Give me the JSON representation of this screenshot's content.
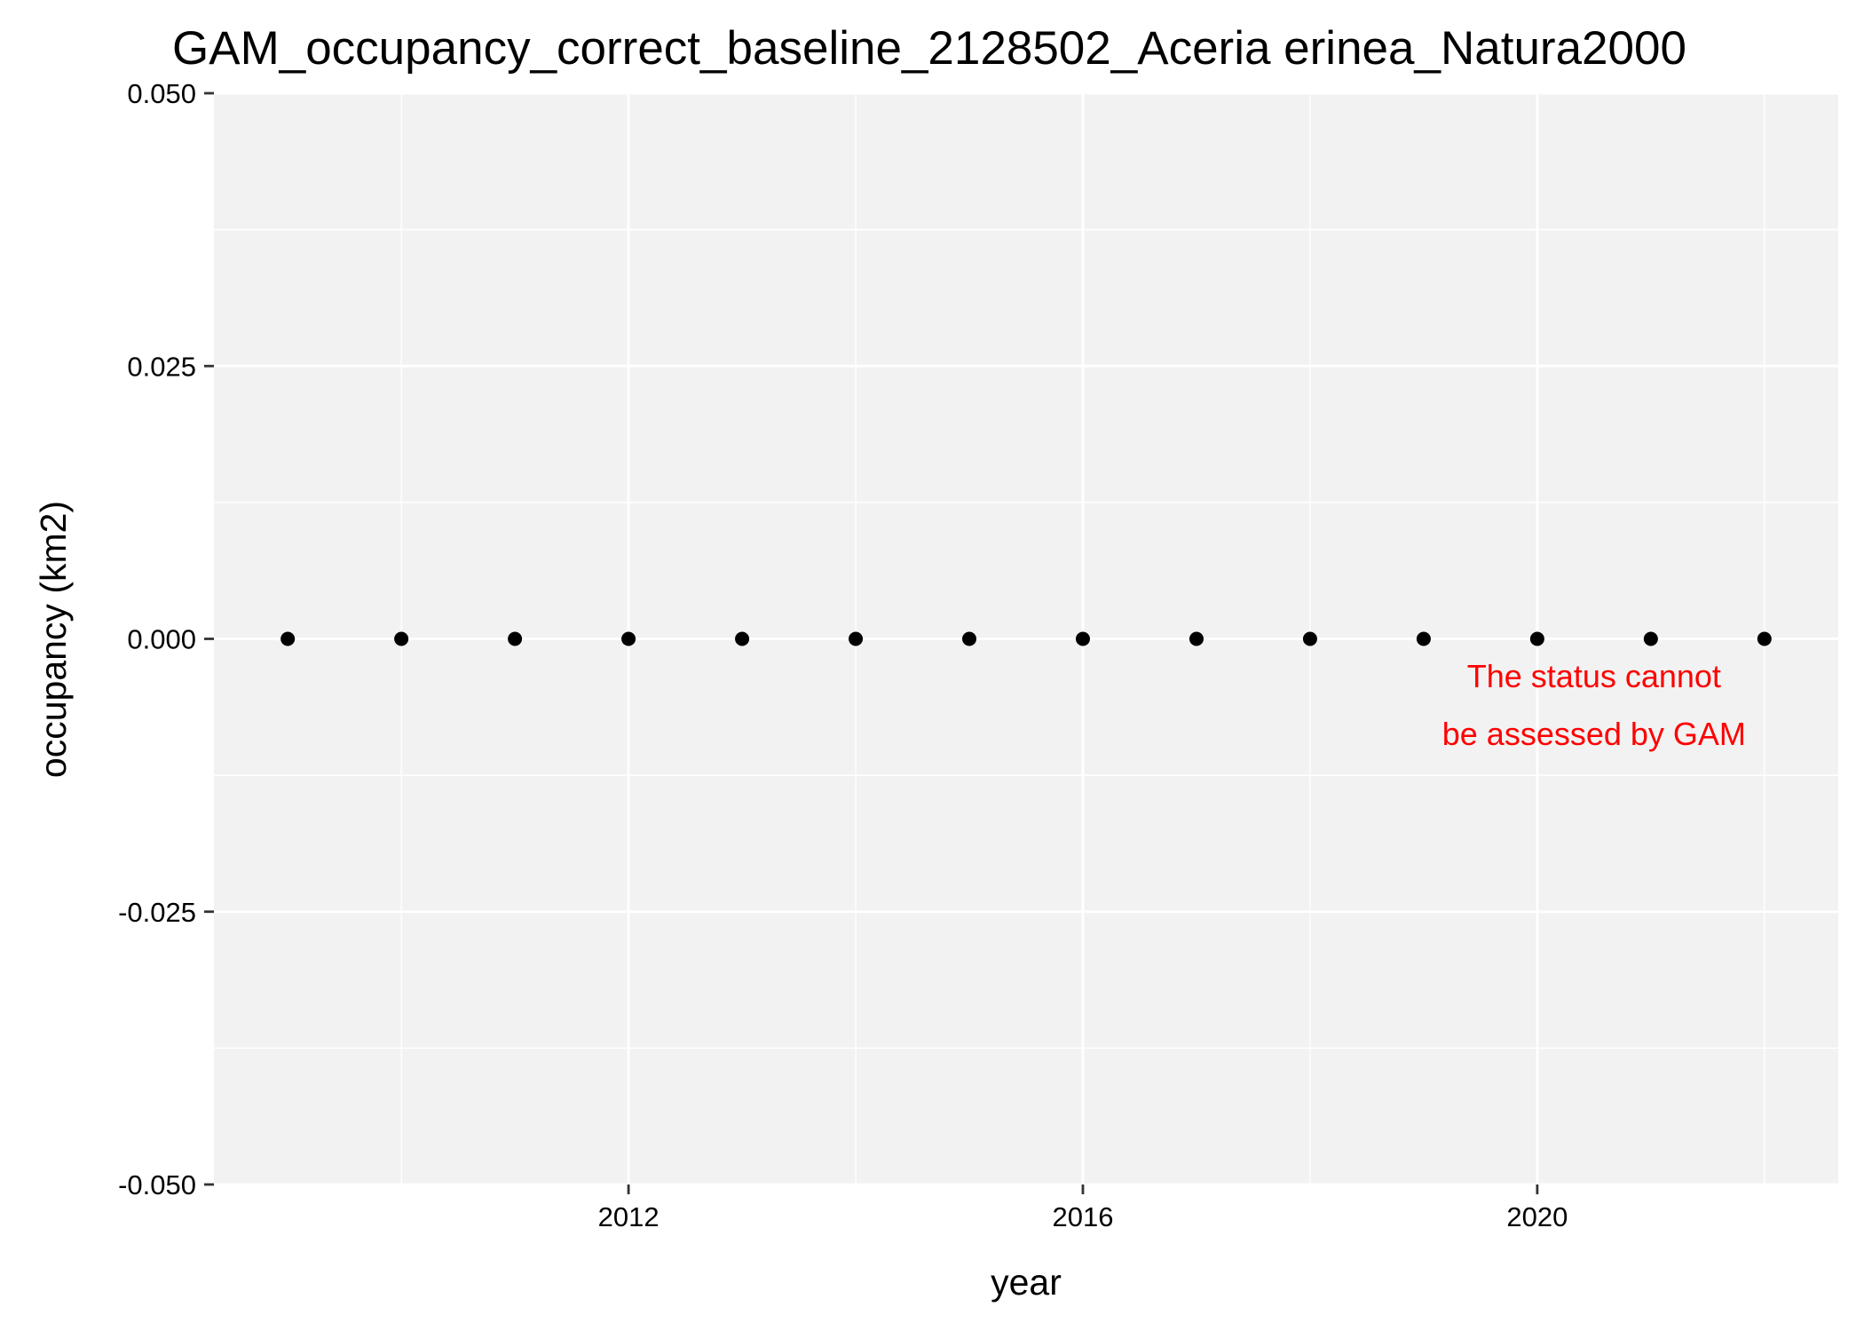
{
  "chart_data": {
    "type": "scatter",
    "title": "GAM_occupancy_correct_baseline_2128502_Aceria erinea_Natura2000",
    "xlabel": "year",
    "ylabel": "occupancy (km2)",
    "x": [
      2009,
      2010,
      2011,
      2012,
      2013,
      2014,
      2015,
      2016,
      2017,
      2018,
      2019,
      2020,
      2021,
      2022
    ],
    "y": [
      0,
      0,
      0,
      0,
      0,
      0,
      0,
      0,
      0,
      0,
      0,
      0,
      0,
      0
    ],
    "xlim": [
      2008.35,
      2022.65
    ],
    "ylim": [
      -0.05,
      0.05
    ],
    "x_ticks": [
      2012,
      2016,
      2020
    ],
    "x_tick_labels": [
      "2012",
      "2016",
      "2020"
    ],
    "x_minor_ticks": [
      2010,
      2014,
      2018,
      2022
    ],
    "y_ticks": [
      -0.05,
      -0.025,
      0,
      0.025,
      0.05
    ],
    "y_tick_labels": [
      "-0.050",
      "-0.025",
      "0.000",
      "0.025",
      "0.050"
    ],
    "y_minor_ticks": [
      -0.0375,
      -0.0125,
      0.0125,
      0.0375
    ],
    "grid": true,
    "point_color": "#000000",
    "panel_color": "#f2f2f2",
    "grid_color": "#ffffff",
    "annotation": {
      "lines": [
        "The status cannot",
        "be assessed by GAM"
      ],
      "color": "#ff0000",
      "x": 2020.5,
      "y": -0.0015
    }
  }
}
